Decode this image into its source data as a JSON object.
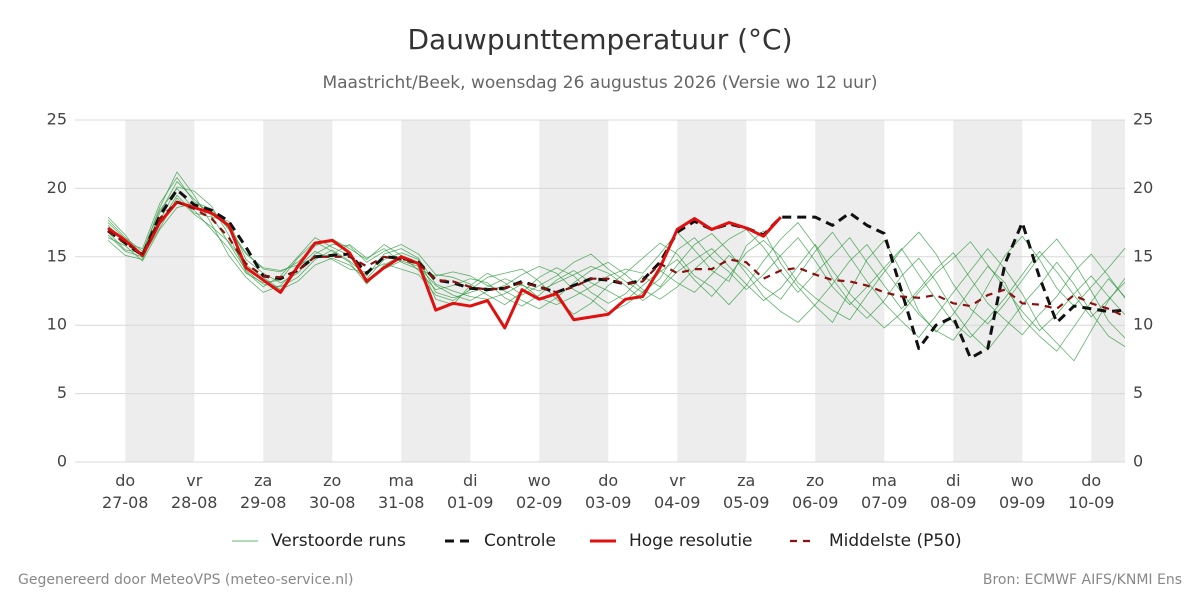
{
  "chart_data": {
    "type": "line",
    "title": "Dauwpunttemperatuur (°C)",
    "subtitle": "Maastricht/Beek, woensdag 26 augustus 2026 (Versie wo 12 uur)",
    "categories": [
      null,
      "do 27-08",
      null,
      null,
      null,
      "vr 28-08",
      null,
      null,
      null,
      "za 29-08",
      null,
      null,
      null,
      "zo 30-08",
      null,
      null,
      null,
      "ma 31-08",
      null,
      null,
      null,
      "di 01-09",
      null,
      null,
      null,
      "wo 02-09",
      null,
      null,
      null,
      "do 03-09",
      null,
      null,
      null,
      "vr 04-09",
      null,
      null,
      null,
      "za 05-09",
      null,
      null,
      null,
      "zo 06-09",
      null,
      null,
      null,
      "ma 07-09",
      null,
      null,
      null,
      "di 08-09",
      null,
      null,
      null,
      "wo 09-09",
      null,
      null,
      null,
      "do 10-09",
      null,
      null
    ],
    "ylim": [
      0,
      25
    ],
    "yticks": [
      0,
      5,
      10,
      15,
      20,
      25
    ],
    "grid": true,
    "legend": "bottom",
    "day_shading": "#ededed",
    "series": [
      {
        "name": "Verstoorde runs",
        "color": "#2e9a3c",
        "style": "thin",
        "members": [
          [
            17.5,
            16.3,
            15.0,
            18.2,
            20.5,
            19.2,
            18.0,
            16.0,
            14.0,
            13.0,
            12.8,
            13.5,
            14.8,
            15.5,
            14.7,
            13.6,
            15.2,
            15.6,
            14.9,
            13.0,
            12.5,
            12.1,
            11.9,
            12.3,
            13.0,
            12.0,
            11.5,
            12.1,
            12.8,
            13.6,
            14.1,
            13.8,
            15.2,
            16.8,
            15.5,
            14.0,
            13.2,
            15.8,
            16.9,
            14.5,
            12.8,
            11.4,
            10.2,
            12.5,
            14.8,
            16.2,
            13.9,
            11.0,
            9.5,
            10.8,
            12.6,
            14.3,
            13.1,
            10.5,
            9.2,
            8.1,
            9.9,
            11.7,
            13.4,
            12.0
          ],
          [
            16.4,
            15.8,
            14.7,
            17.0,
            18.6,
            18.9,
            18.3,
            17.1,
            15.3,
            14.1,
            13.9,
            14.6,
            15.8,
            16.3,
            15.6,
            14.8,
            15.9,
            15.1,
            14.0,
            12.6,
            12.9,
            13.4,
            13.1,
            12.0,
            11.4,
            12.2,
            13.3,
            14.0,
            13.1,
            12.5,
            11.8,
            12.9,
            14.0,
            13.1,
            12.4,
            13.7,
            15.1,
            14.2,
            12.8,
            11.9,
            13.6,
            15.4,
            16.8,
            15.0,
            13.2,
            11.6,
            10.3,
            9.1,
            10.7,
            12.4,
            14.0,
            15.6,
            14.1,
            12.3,
            10.0,
            8.7,
            7.4,
            9.6,
            11.8,
            13.5
          ],
          [
            16.8,
            15.5,
            15.3,
            18.6,
            21.2,
            19.5,
            17.4,
            15.1,
            13.5,
            12.4,
            12.9,
            14.2,
            15.4,
            14.8,
            14.1,
            13.9,
            14.5,
            14.1,
            13.7,
            12.2,
            11.8,
            12.6,
            13.5,
            13.8,
            14.1,
            13.2,
            11.9,
            10.8,
            11.6,
            12.9,
            13.8,
            14.9,
            16.0,
            15.2,
            13.6,
            12.8,
            11.5,
            12.9,
            14.7,
            16.3,
            17.5,
            15.8,
            13.4,
            11.7,
            10.5,
            11.8,
            13.6,
            14.9,
            13.2,
            11.1,
            9.4,
            8.2,
            9.8,
            11.5,
            12.9,
            14.6,
            13.0,
            10.9,
            9.2,
            8.4
          ],
          [
            17.9,
            16.6,
            14.9,
            17.4,
            19.5,
            18.2,
            17.9,
            17.6,
            14.8,
            13.8,
            13.1,
            13.8,
            15.2,
            15.9,
            15.8,
            14.6,
            15.4,
            15.9,
            15.2,
            13.7,
            13.5,
            13.0,
            12.2,
            11.5,
            12.4,
            13.5,
            14.2,
            13.6,
            12.4,
            11.6,
            12.3,
            13.6,
            12.8,
            14.4,
            15.9,
            16.7,
            15.4,
            13.8,
            12.1,
            11.0,
            10.2,
            11.5,
            13.0,
            14.7,
            15.9,
            14.1,
            12.4,
            10.8,
            9.6,
            8.9,
            10.6,
            12.9,
            15.1,
            16.5,
            14.8,
            12.7,
            11.4,
            12.8,
            14.2,
            15.7
          ],
          [
            16.2,
            15.1,
            14.8,
            17.6,
            20.1,
            19.8,
            18.7,
            16.6,
            13.9,
            12.8,
            13.6,
            15.0,
            16.4,
            15.7,
            15.1,
            13.1,
            14.1,
            14.7,
            14.3,
            12.9,
            12.2,
            11.8,
            12.5,
            12.9,
            13.7,
            14.3,
            13.8,
            12.6,
            11.9,
            10.9,
            11.5,
            12.4,
            13.9,
            14.8,
            13.3,
            12.1,
            13.6,
            15.3,
            16.2,
            15.0,
            13.1,
            12.0,
            11.1,
            10.4,
            12.2,
            13.9,
            15.5,
            16.8,
            15.2,
            13.0,
            11.2,
            10.1,
            11.6,
            13.3,
            15.0,
            16.3,
            14.6,
            12.5,
            10.3,
            9.0
          ],
          [
            17.3,
            16.0,
            15.6,
            18.9,
            20.8,
            19.0,
            18.5,
            17.0,
            15.2,
            14.2,
            14.0,
            14.4,
            14.9,
            15.2,
            15.9,
            14.9,
            15.6,
            14.6,
            14.1,
            13.6,
            13.9,
            13.6,
            12.9,
            12.5,
            11.8,
            11.2,
            12.0,
            13.1,
            14.0,
            14.6,
            13.7,
            12.6,
            11.9,
            12.8,
            14.1,
            15.2,
            16.3,
            17.0,
            15.7,
            13.9,
            12.4,
            13.8,
            15.1,
            16.4,
            14.6,
            12.9,
            11.2,
            12.6,
            14.1,
            15.3,
            13.4,
            11.6,
            10.4,
            9.3,
            10.8,
            12.1,
            13.9,
            15.2,
            13.6,
            11.9
          ],
          [
            16.6,
            15.4,
            15.0,
            17.1,
            19.3,
            18.1,
            17.2,
            16.1,
            14.4,
            13.5,
            12.6,
            13.2,
            14.4,
            14.9,
            14.4,
            13.4,
            14.8,
            15.3,
            14.8,
            12.4,
            12.0,
            12.4,
            12.8,
            13.4,
            12.9,
            12.5,
            13.1,
            13.7,
            14.3,
            13.8,
            12.9,
            11.8,
            12.7,
            13.9,
            14.8,
            15.6,
            14.3,
            13.0,
            11.8,
            12.7,
            14.3,
            15.9,
            14.0,
            12.3,
            11.0,
            9.8,
            10.9,
            12.4,
            13.8,
            14.9,
            16.1,
            14.4,
            12.7,
            11.0,
            9.6,
            10.8,
            12.3,
            13.6,
            12.1,
            10.7
          ],
          [
            17.7,
            16.4,
            15.4,
            18.4,
            20.0,
            18.4,
            17.0,
            15.6,
            13.8,
            13.1,
            13.3,
            14.9,
            16.1,
            15.4,
            14.6,
            13.0,
            14.4,
            15.1,
            14.6,
            11.9,
            11.5,
            12.9,
            13.8,
            13.1,
            12.2,
            12.9,
            13.6,
            14.6,
            15.2,
            14.1,
            13.2,
            12.4,
            13.4,
            15.5,
            16.4,
            14.9,
            13.9,
            12.6,
            13.7,
            15.1,
            16.4,
            14.7,
            12.8,
            11.5,
            12.8,
            14.2,
            15.6,
            13.7,
            11.9,
            10.2,
            9.1,
            10.5,
            12.0,
            13.7,
            15.4,
            13.9,
            12.2,
            10.6,
            11.9,
            13.2
          ]
        ]
      },
      {
        "name": "Controle",
        "color": "#111111",
        "style": "dashed",
        "values": [
          16.9,
          16.0,
          15.1,
          18.0,
          19.9,
          18.8,
          18.4,
          17.6,
          15.7,
          13.6,
          13.4,
          14.0,
          15.0,
          15.1,
          15.2,
          13.8,
          15.0,
          14.9,
          14.6,
          13.3,
          13.1,
          12.7,
          12.6,
          12.7,
          13.2,
          12.8,
          12.4,
          12.9,
          13.4,
          13.3,
          13.0,
          13.3,
          14.6,
          16.8,
          17.6,
          17.0,
          17.4,
          17.1,
          16.6,
          17.9,
          17.9,
          17.9,
          17.3,
          18.2,
          17.3,
          16.7,
          12.5,
          8.3,
          10.0,
          10.6,
          7.6,
          8.3,
          14.5,
          17.5,
          13.5,
          10.2,
          11.4,
          11.2,
          11.0,
          11.1
        ]
      },
      {
        "name": "Hoge resolutie",
        "color": "#e01010",
        "style": "solid",
        "values": [
          17.1,
          16.2,
          15.1,
          17.5,
          19.0,
          18.6,
          18.2,
          17.3,
          14.2,
          13.3,
          12.4,
          14.3,
          16.0,
          16.2,
          15.3,
          13.2,
          14.2,
          15.0,
          14.5,
          11.1,
          11.6,
          11.4,
          11.8,
          9.8,
          12.6,
          11.9,
          12.3,
          10.4,
          10.6,
          10.8,
          11.9,
          12.1,
          14.2,
          17.0,
          17.8,
          17.0,
          17.5,
          17.1,
          16.5,
          17.9,
          null,
          null,
          null,
          null,
          null,
          null,
          null,
          null,
          null,
          null,
          null,
          null,
          null,
          null,
          null,
          null,
          null,
          null,
          null,
          null
        ]
      },
      {
        "name": "Middelste (P50)",
        "color": "#8b1010",
        "style": "dashed-thin",
        "values": [
          16.9,
          16.0,
          15.2,
          17.8,
          19.0,
          18.5,
          17.8,
          16.4,
          14.5,
          13.6,
          13.5,
          14.0,
          15.0,
          15.0,
          15.0,
          14.3,
          15.0,
          14.8,
          14.5,
          13.3,
          13.2,
          12.8,
          12.6,
          12.7,
          13.1,
          12.8,
          12.4,
          12.8,
          13.4,
          13.4,
          13.0,
          13.2,
          14.5,
          13.8,
          14.1,
          14.1,
          14.8,
          14.6,
          13.4,
          14.0,
          14.2,
          13.7,
          13.3,
          13.2,
          12.9,
          12.4,
          12.1,
          12.0,
          12.2,
          11.6,
          11.4,
          12.2,
          12.6,
          11.6,
          11.5,
          11.2,
          12.2,
          11.6,
          11.2,
          10.6
        ]
      }
    ]
  },
  "footer": {
    "left": "Gegenereerd door MeteoVPS (meteo-service.nl)",
    "right": "Bron: ECMWF AIFS/KNMI Ens"
  }
}
